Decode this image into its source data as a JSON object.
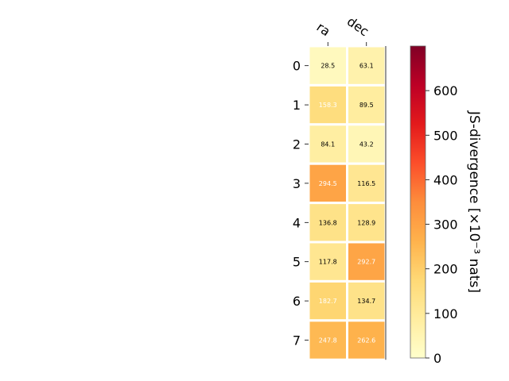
{
  "chart_data": {
    "type": "heatmap",
    "columns": [
      "ra",
      "dec"
    ],
    "rows": [
      "0",
      "1",
      "2",
      "3",
      "4",
      "5",
      "6",
      "7"
    ],
    "values": [
      [
        28.5,
        63.1
      ],
      [
        158.3,
        89.5
      ],
      [
        84.1,
        43.2
      ],
      [
        294.5,
        116.5
      ],
      [
        136.8,
        128.9
      ],
      [
        117.8,
        292.7
      ],
      [
        182.7,
        134.7
      ],
      [
        247.8,
        262.6
      ]
    ],
    "value_labels": [
      [
        "28.5",
        "63.1"
      ],
      [
        "158.3",
        "89.5"
      ],
      [
        "84.1",
        "43.2"
      ],
      [
        "294.5",
        "116.5"
      ],
      [
        "136.8",
        "128.9"
      ],
      [
        "117.8",
        "292.7"
      ],
      [
        "182.7",
        "134.7"
      ],
      [
        "247.8",
        "262.6"
      ]
    ],
    "colorbar": {
      "label": "JS-divergence [×10⁻³ nats]",
      "range": [
        0,
        700
      ],
      "ticks": [
        0,
        100,
        200,
        300,
        400,
        500,
        600
      ],
      "tick_labels": [
        "0",
        "100",
        "200",
        "300",
        "400",
        "500",
        "600"
      ],
      "colormap": "YlOrRd"
    },
    "grid": false
  }
}
